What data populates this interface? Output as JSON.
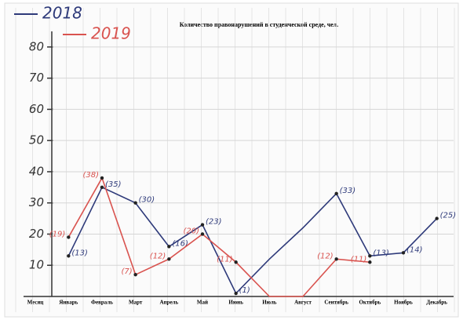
{
  "chart_data": {
    "type": "line",
    "title": "Количество правонарушений в студенческой среде, чел.",
    "x_label": "Месяц",
    "categories": [
      "Январь",
      "Февраль",
      "Март",
      "Апрель",
      "Май",
      "Июнь",
      "Июль",
      "Август",
      "Сентябрь",
      "Октябрь",
      "Ноябрь",
      "Декабрь"
    ],
    "series": [
      {
        "name": "2018",
        "color": "#2e3a7a",
        "values": [
          13,
          35,
          30,
          16,
          23,
          1,
          12,
          22,
          33,
          13,
          14,
          25
        ],
        "value_labels": [
          "(13)",
          "(35)",
          "(30)",
          "(16)",
          "(23)",
          "(1)",
          null,
          null,
          "(33)",
          "(13)",
          "(14)",
          "(25)"
        ]
      },
      {
        "name": "2019",
        "color": "#d9534f",
        "values": [
          19,
          38,
          7,
          12,
          20,
          11,
          0,
          0,
          12,
          11,
          null,
          null
        ],
        "value_labels": [
          "(19)",
          "(38)",
          "(7)",
          "(12)",
          "(20)",
          "(11)",
          null,
          null,
          "(12)",
          "(11)",
          null,
          null
        ]
      }
    ],
    "ylim": [
      0,
      85
    ],
    "yticks": [
      10,
      20,
      30,
      40,
      50,
      60,
      70,
      80
    ],
    "grid": true,
    "legend": "top-left"
  }
}
